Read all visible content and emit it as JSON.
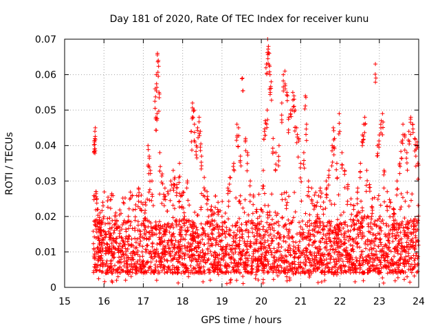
{
  "chart_data": {
    "type": "scatter",
    "title": "Day 181 of 2020, Rate Of TEC Index for receiver kunu",
    "xlabel": "GPS time / hours",
    "ylabel": "ROTI / TECUs",
    "xlim": [
      15,
      24
    ],
    "ylim": [
      0,
      0.07
    ],
    "x_ticks": [
      15,
      16,
      17,
      18,
      19,
      20,
      21,
      22,
      23,
      24
    ],
    "x_tick_labels": [
      "15",
      "16",
      "17",
      "18",
      "19",
      "20",
      "21",
      "22",
      "23",
      "24"
    ],
    "y_ticks": [
      0,
      0.01,
      0.02,
      0.03,
      0.04,
      0.05,
      0.06,
      0.07
    ],
    "y_tick_labels": [
      "0",
      "0.01",
      "0.02",
      "0.03",
      "0.04",
      "0.05",
      "0.06",
      "0.07"
    ],
    "grid": true,
    "legend": "none",
    "marker": "+",
    "color": "#ff0000",
    "series": [
      {
        "name": "ROTI",
        "points": [
          [
            15.76,
            0.041
          ],
          [
            15.77,
            0.044
          ],
          [
            15.78,
            0.045
          ],
          [
            15.76,
            0.039
          ],
          [
            15.8,
            0.027
          ],
          [
            15.82,
            0.025
          ],
          [
            15.85,
            0.022
          ],
          [
            15.88,
            0.019
          ],
          [
            15.9,
            0.021
          ],
          [
            15.93,
            0.016
          ],
          [
            15.97,
            0.024
          ],
          [
            16.05,
            0.015
          ],
          [
            16.15,
            0.018
          ],
          [
            16.3,
            0.021
          ],
          [
            16.4,
            0.017
          ],
          [
            16.5,
            0.012
          ],
          [
            16.62,
            0.02
          ],
          [
            16.8,
            0.022
          ],
          [
            16.88,
            0.028
          ],
          [
            16.95,
            0.026
          ],
          [
            17.05,
            0.024
          ],
          [
            17.12,
            0.04
          ],
          [
            17.15,
            0.037
          ],
          [
            17.18,
            0.033
          ],
          [
            17.22,
            0.03
          ],
          [
            17.3,
            0.056
          ],
          [
            17.33,
            0.06
          ],
          [
            17.36,
            0.066
          ],
          [
            17.38,
            0.064
          ],
          [
            17.35,
            0.049
          ],
          [
            17.32,
            0.048
          ],
          [
            17.4,
            0.055
          ],
          [
            17.42,
            0.038
          ],
          [
            17.48,
            0.032
          ],
          [
            17.55,
            0.028
          ],
          [
            17.62,
            0.027
          ],
          [
            17.7,
            0.03
          ],
          [
            17.76,
            0.033
          ],
          [
            17.8,
            0.031
          ],
          [
            17.85,
            0.029
          ],
          [
            17.92,
            0.035
          ],
          [
            17.98,
            0.026
          ],
          [
            18.05,
            0.02
          ],
          [
            18.12,
            0.03
          ],
          [
            18.22,
            0.044
          ],
          [
            18.25,
            0.052
          ],
          [
            18.28,
            0.05
          ],
          [
            18.3,
            0.046
          ],
          [
            18.35,
            0.04
          ],
          [
            18.38,
            0.045
          ],
          [
            18.42,
            0.048
          ],
          [
            18.45,
            0.044
          ],
          [
            18.48,
            0.037
          ],
          [
            18.55,
            0.031
          ],
          [
            18.62,
            0.027
          ],
          [
            18.72,
            0.022
          ],
          [
            18.8,
            0.021
          ],
          [
            18.9,
            0.024
          ],
          [
            19.0,
            0.02
          ],
          [
            19.15,
            0.028
          ],
          [
            19.2,
            0.031
          ],
          [
            19.3,
            0.035
          ],
          [
            19.38,
            0.046
          ],
          [
            19.42,
            0.045
          ],
          [
            19.47,
            0.037
          ],
          [
            19.52,
            0.059
          ],
          [
            19.6,
            0.042
          ],
          [
            19.65,
            0.038
          ],
          [
            19.72,
            0.03
          ],
          [
            19.8,
            0.026
          ],
          [
            19.88,
            0.022
          ],
          [
            19.96,
            0.02
          ],
          [
            20.05,
            0.033
          ],
          [
            20.08,
            0.044
          ],
          [
            20.1,
            0.047
          ],
          [
            20.13,
            0.063
          ],
          [
            20.16,
            0.07
          ],
          [
            20.18,
            0.068
          ],
          [
            20.2,
            0.066
          ],
          [
            20.22,
            0.06
          ],
          [
            20.25,
            0.058
          ],
          [
            20.15,
            0.05
          ],
          [
            20.3,
            0.042
          ],
          [
            20.37,
            0.038
          ],
          [
            20.45,
            0.04
          ],
          [
            20.52,
            0.052
          ],
          [
            20.56,
            0.06
          ],
          [
            20.6,
            0.061
          ],
          [
            20.65,
            0.055
          ],
          [
            20.7,
            0.048
          ],
          [
            20.75,
            0.05
          ],
          [
            20.8,
            0.055
          ],
          [
            20.83,
            0.054
          ],
          [
            20.86,
            0.05
          ],
          [
            20.9,
            0.045
          ],
          [
            20.95,
            0.042
          ],
          [
            21.0,
            0.035
          ],
          [
            21.08,
            0.038
          ],
          [
            21.12,
            0.054
          ],
          [
            21.15,
            0.046
          ],
          [
            21.2,
            0.03
          ],
          [
            21.28,
            0.028
          ],
          [
            21.35,
            0.026
          ],
          [
            21.42,
            0.024
          ],
          [
            21.5,
            0.028
          ],
          [
            21.57,
            0.022
          ],
          [
            21.65,
            0.03
          ],
          [
            21.72,
            0.033
          ],
          [
            21.8,
            0.04
          ],
          [
            21.83,
            0.045
          ],
          [
            21.86,
            0.042
          ],
          [
            21.92,
            0.035
          ],
          [
            21.98,
            0.049
          ],
          [
            22.05,
            0.038
          ],
          [
            22.12,
            0.033
          ],
          [
            22.2,
            0.029
          ],
          [
            22.28,
            0.025
          ],
          [
            22.35,
            0.023
          ],
          [
            22.45,
            0.028
          ],
          [
            22.52,
            0.035
          ],
          [
            22.57,
            0.043
          ],
          [
            22.6,
            0.046
          ],
          [
            22.63,
            0.048
          ],
          [
            22.68,
            0.033
          ],
          [
            22.75,
            0.029
          ],
          [
            22.82,
            0.025
          ],
          [
            22.9,
            0.063
          ],
          [
            22.95,
            0.04
          ],
          [
            23.0,
            0.043
          ],
          [
            23.05,
            0.047
          ],
          [
            23.08,
            0.049
          ],
          [
            23.12,
            0.033
          ],
          [
            23.2,
            0.027
          ],
          [
            23.28,
            0.024
          ],
          [
            23.36,
            0.022
          ],
          [
            23.45,
            0.03
          ],
          [
            23.52,
            0.035
          ],
          [
            23.56,
            0.041
          ],
          [
            23.6,
            0.046
          ],
          [
            23.65,
            0.043
          ],
          [
            23.7,
            0.038
          ],
          [
            23.75,
            0.044
          ],
          [
            23.8,
            0.048
          ],
          [
            23.85,
            0.046
          ],
          [
            23.9,
            0.042
          ],
          [
            23.93,
            0.039
          ],
          [
            23.96,
            0.041
          ],
          [
            23.98,
            0.035
          ]
        ]
      }
    ],
    "background_band": {
      "x_start": 15.72,
      "x_end": 24.0,
      "y_low": 0.004,
      "y_high": 0.019
    }
  }
}
